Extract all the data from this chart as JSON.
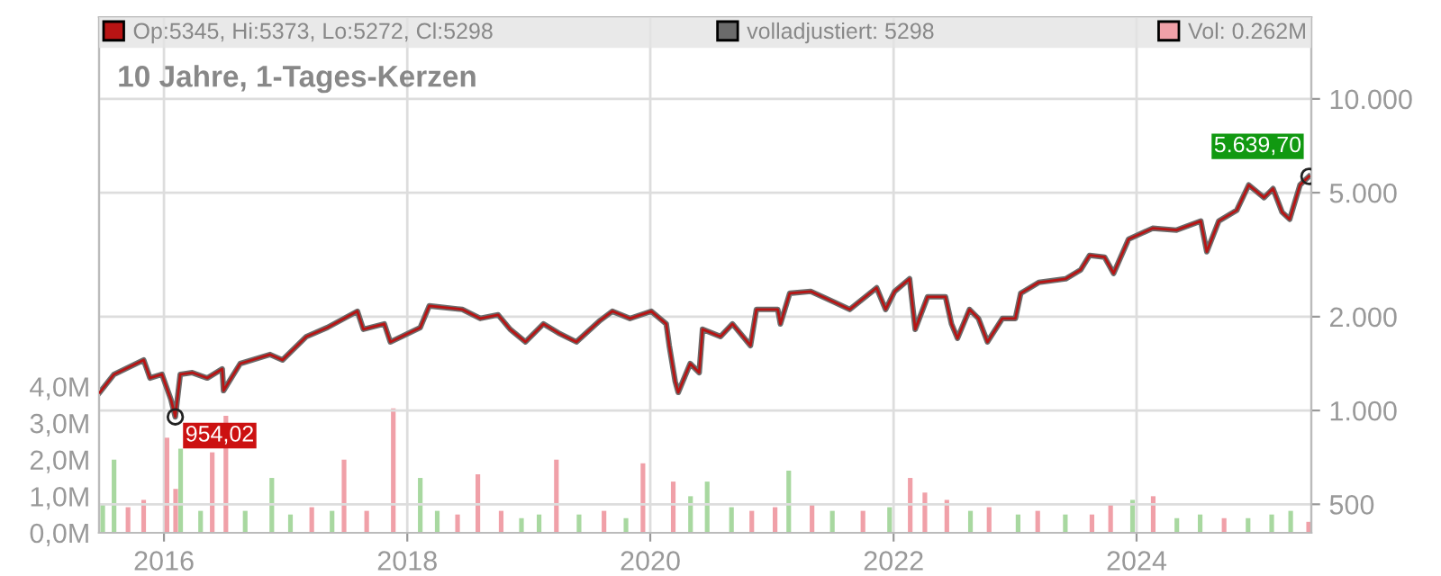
{
  "chart_data": {
    "type": "line",
    "title": "10 Jahre, 1-Tages-Kerzen",
    "xlim": [
      "2015-06-20",
      "2025-06-09"
    ],
    "xticks": [
      "2016",
      "2018",
      "2020",
      "2022",
      "2024"
    ],
    "ylim": [
      405,
      18300
    ],
    "yticks": [
      500,
      {
        "value": 1000,
        "label": "1.000"
      },
      {
        "value": 2000,
        "label": "2.000"
      },
      {
        "value": 5000,
        "label": "5.000"
      },
      {
        "value": 10000,
        "label": "10.000"
      }
    ],
    "y2lim": [
      0,
      14.1
    ],
    "y2ticks": [
      {
        "value": 0,
        "label": "0,0M"
      },
      {
        "value": 1,
        "label": "1,0M"
      },
      {
        "value": 2,
        "label": "2,0M"
      },
      {
        "value": 3,
        "label": "3,0M"
      },
      {
        "value": 4,
        "label": "4,0M"
      }
    ],
    "log": "y",
    "grid": true,
    "legend": "top left",
    "x": [
      "2015-06-22",
      "2015-08-04",
      "2015-11-01",
      "2015-11-20",
      "2015-12-26",
      "2016-01-22",
      "2016-02-04",
      "2016-02-19",
      "2016-03-26",
      "2016-05-10",
      "2016-06-24",
      "2016-06-28",
      "2016-08-17",
      "2016-11-15",
      "2016-12-22",
      "2017-03-04",
      "2017-05-06",
      "2017-08-04",
      "2017-08-22",
      "2017-10-24",
      "2017-11-11",
      "2018-02-09",
      "2018-03-08",
      "2018-06-15",
      "2018-08-08",
      "2018-10-01",
      "2018-11-06",
      "2018-12-22",
      "2019-02-14",
      "2019-03-31",
      "2019-05-24",
      "2019-08-04",
      "2019-09-09",
      "2019-11-01",
      "2020-01-04",
      "2020-02-18",
      "2020-02-27",
      "2020-03-16",
      "2020-03-25",
      "2020-04-30",
      "2020-05-27",
      "2020-06-06",
      "2020-07-30",
      "2020-09-04",
      "2020-10-28",
      "2020-11-15",
      "2021-01-18",
      "2021-01-26",
      "2021-02-23",
      "2021-04-27",
      "2021-07-07",
      "2021-08-22",
      "2021-11-11",
      "2021-12-08",
      "2022-01-04",
      "2022-02-18",
      "2022-03-07",
      "2022-04-13",
      "2022-06-06",
      "2022-06-24",
      "2022-07-12",
      "2022-08-17",
      "2022-09-13",
      "2022-10-10",
      "2022-11-24",
      "2023-01-02",
      "2023-01-18",
      "2023-03-13",
      "2023-06-02",
      "2023-07-17",
      "2023-08-13",
      "2023-09-27",
      "2023-10-24",
      "2023-12-08",
      "2024-02-18",
      "2024-04-30",
      "2024-07-12",
      "2024-07-30",
      "2024-09-04",
      "2024-10-28",
      "2024-12-03",
      "2025-01-18",
      "2025-02-14",
      "2025-03-13",
      "2025-04-05",
      "2025-05-06",
      "2025-06-02"
    ],
    "series": [
      {
        "name": "volladjustiert: 5298",
        "color": "#6b6b6b",
        "values": [
          1143,
          1306,
          1452,
          1271,
          1306,
          1083,
          954.02,
          1306,
          1323,
          1271,
          1359,
          1158,
          1414,
          1512,
          1452,
          1727,
          1846,
          2082,
          1822,
          1896,
          1660,
          1846,
          2166,
          2110,
          1974,
          2027,
          1822,
          1660,
          1896,
          1774,
          1660,
          1948,
          2082,
          1974,
          2082,
          1896,
          1616,
          1238,
          1143,
          1414,
          1323,
          1822,
          1727,
          1896,
          1616,
          2110,
          2110,
          1896,
          2378,
          2410,
          2225,
          2110,
          2476,
          2110,
          2410,
          2646,
          1822,
          2316,
          2316,
          1896,
          1704,
          2110,
          1974,
          1660,
          1974,
          1974,
          2378,
          2576,
          2646,
          2828,
          3147,
          3105,
          2755,
          3547,
          3843,
          3792,
          4054,
          3232,
          4054,
          4391,
          5292,
          4821,
          5152,
          4333,
          4108,
          5292,
          5639.7
        ]
      },
      {
        "name": "Op:5345, Hi:5373, Lo:5272, Cl:5298",
        "color": "#b81414",
        "values": [
          1143,
          1306,
          1452,
          1271,
          1306,
          1083,
          954.02,
          1306,
          1323,
          1271,
          1359,
          1158,
          1414,
          1512,
          1452,
          1727,
          1846,
          2082,
          1822,
          1896,
          1660,
          1846,
          2166,
          2110,
          1974,
          2027,
          1822,
          1660,
          1896,
          1774,
          1660,
          1948,
          2082,
          1974,
          2082,
          1896,
          1616,
          1238,
          1143,
          1414,
          1323,
          1822,
          1727,
          1896,
          1616,
          2110,
          2110,
          1896,
          2378,
          2410,
          2225,
          2110,
          2476,
          2110,
          2410,
          2646,
          1822,
          2316,
          2316,
          1896,
          1704,
          2110,
          1974,
          1660,
          1974,
          1974,
          2378,
          2576,
          2646,
          2828,
          3147,
          3105,
          2755,
          3547,
          3843,
          3792,
          4054,
          3232,
          4054,
          4391,
          5292,
          4821,
          5152,
          4333,
          4108,
          5292,
          5639.7
        ]
      },
      {
        "name": "Vol: 0.262M",
        "type": "bar",
        "axis": "y2",
        "color": "#f0a0a8",
        "x": [
          "2015-07-01",
          "2015-08-04",
          "2015-09-15",
          "2015-11-01",
          "2016-01-10",
          "2016-02-05",
          "2016-02-20",
          "2016-04-20",
          "2016-05-25",
          "2016-07-05",
          "2016-09-01",
          "2016-11-20",
          "2017-01-15",
          "2017-03-20",
          "2017-05-20",
          "2017-06-25",
          "2017-09-01",
          "2017-11-20",
          "2018-02-09",
          "2018-04-01",
          "2018-06-01",
          "2018-08-01",
          "2018-10-10",
          "2018-12-10",
          "2019-02-01",
          "2019-03-25",
          "2019-06-01",
          "2019-08-15",
          "2019-10-20",
          "2019-12-10",
          "2020-03-10",
          "2020-05-01",
          "2020-06-20",
          "2020-09-01",
          "2020-11-01",
          "2021-01-10",
          "2021-02-20",
          "2021-05-01",
          "2021-07-01",
          "2021-10-01",
          "2021-12-20",
          "2022-02-20",
          "2022-04-05",
          "2022-06-10",
          "2022-08-20",
          "2022-10-15",
          "2023-01-10",
          "2023-03-10",
          "2023-06-01",
          "2023-08-20",
          "2023-10-15",
          "2023-12-20",
          "2024-02-20",
          "2024-05-01",
          "2024-07-10",
          "2024-09-20",
          "2024-12-01",
          "2025-02-10",
          "2025-04-08",
          "2025-06-01"
        ],
        "values": [
          0.8,
          2.0,
          0.7,
          0.9,
          2.6,
          1.2,
          2.3,
          0.6,
          2.2,
          3.2,
          0.6,
          1.5,
          0.5,
          0.7,
          0.6,
          2.0,
          0.6,
          3.4,
          1.5,
          0.6,
          0.5,
          1.6,
          0.6,
          0.4,
          0.5,
          2.0,
          0.5,
          0.6,
          0.4,
          1.9,
          1.4,
          1.0,
          1.4,
          0.7,
          0.6,
          0.7,
          1.7,
          0.8,
          0.6,
          0.6,
          0.7,
          1.5,
          1.1,
          0.9,
          0.6,
          0.7,
          0.5,
          0.6,
          0.5,
          0.5,
          0.8,
          0.9,
          1.0,
          0.4,
          0.5,
          0.4,
          0.4,
          0.5,
          0.6,
          0.3
        ],
        "colors": [
          "#a8d8a0",
          "#a8d8a0",
          "#f0a0a8",
          "#f0a0a8",
          "#f0a0a8",
          "#f0a0a8",
          "#a8d8a0",
          "#a8d8a0",
          "#f0a0a8",
          "#f0a0a8",
          "#a8d8a0",
          "#a8d8a0",
          "#a8d8a0",
          "#f0a0a8",
          "#a8d8a0",
          "#f0a0a8",
          "#f0a0a8",
          "#f0a0a8",
          "#a8d8a0",
          "#a8d8a0",
          "#f0a0a8",
          "#f0a0a8",
          "#f0a0a8",
          "#a8d8a0",
          "#a8d8a0",
          "#f0a0a8",
          "#a8d8a0",
          "#f0a0a8",
          "#a8d8a0",
          "#f0a0a8",
          "#f0a0a8",
          "#a8d8a0",
          "#a8d8a0",
          "#a8d8a0",
          "#f0a0a8",
          "#f0a0a8",
          "#a8d8a0",
          "#f0a0a8",
          "#a8d8a0",
          "#f0a0a8",
          "#a8d8a0",
          "#f0a0a8",
          "#f0a0a8",
          "#f0a0a8",
          "#a8d8a0",
          "#f0a0a8",
          "#a8d8a0",
          "#f0a0a8",
          "#a8d8a0",
          "#f0a0a8",
          "#f0a0a8",
          "#a8d8a0",
          "#f0a0a8",
          "#a8d8a0",
          "#a8d8a0",
          "#f0a0a8",
          "#a8d8a0",
          "#a8d8a0",
          "#a8d8a0",
          "#f0a0a8"
        ]
      }
    ],
    "annotations": [
      {
        "text": "5.639,70",
        "x": "2025-06-02",
        "y": 5639.7
      },
      {
        "text": "954,02",
        "x": "2016-02-04",
        "y": 954.02
      }
    ]
  }
}
